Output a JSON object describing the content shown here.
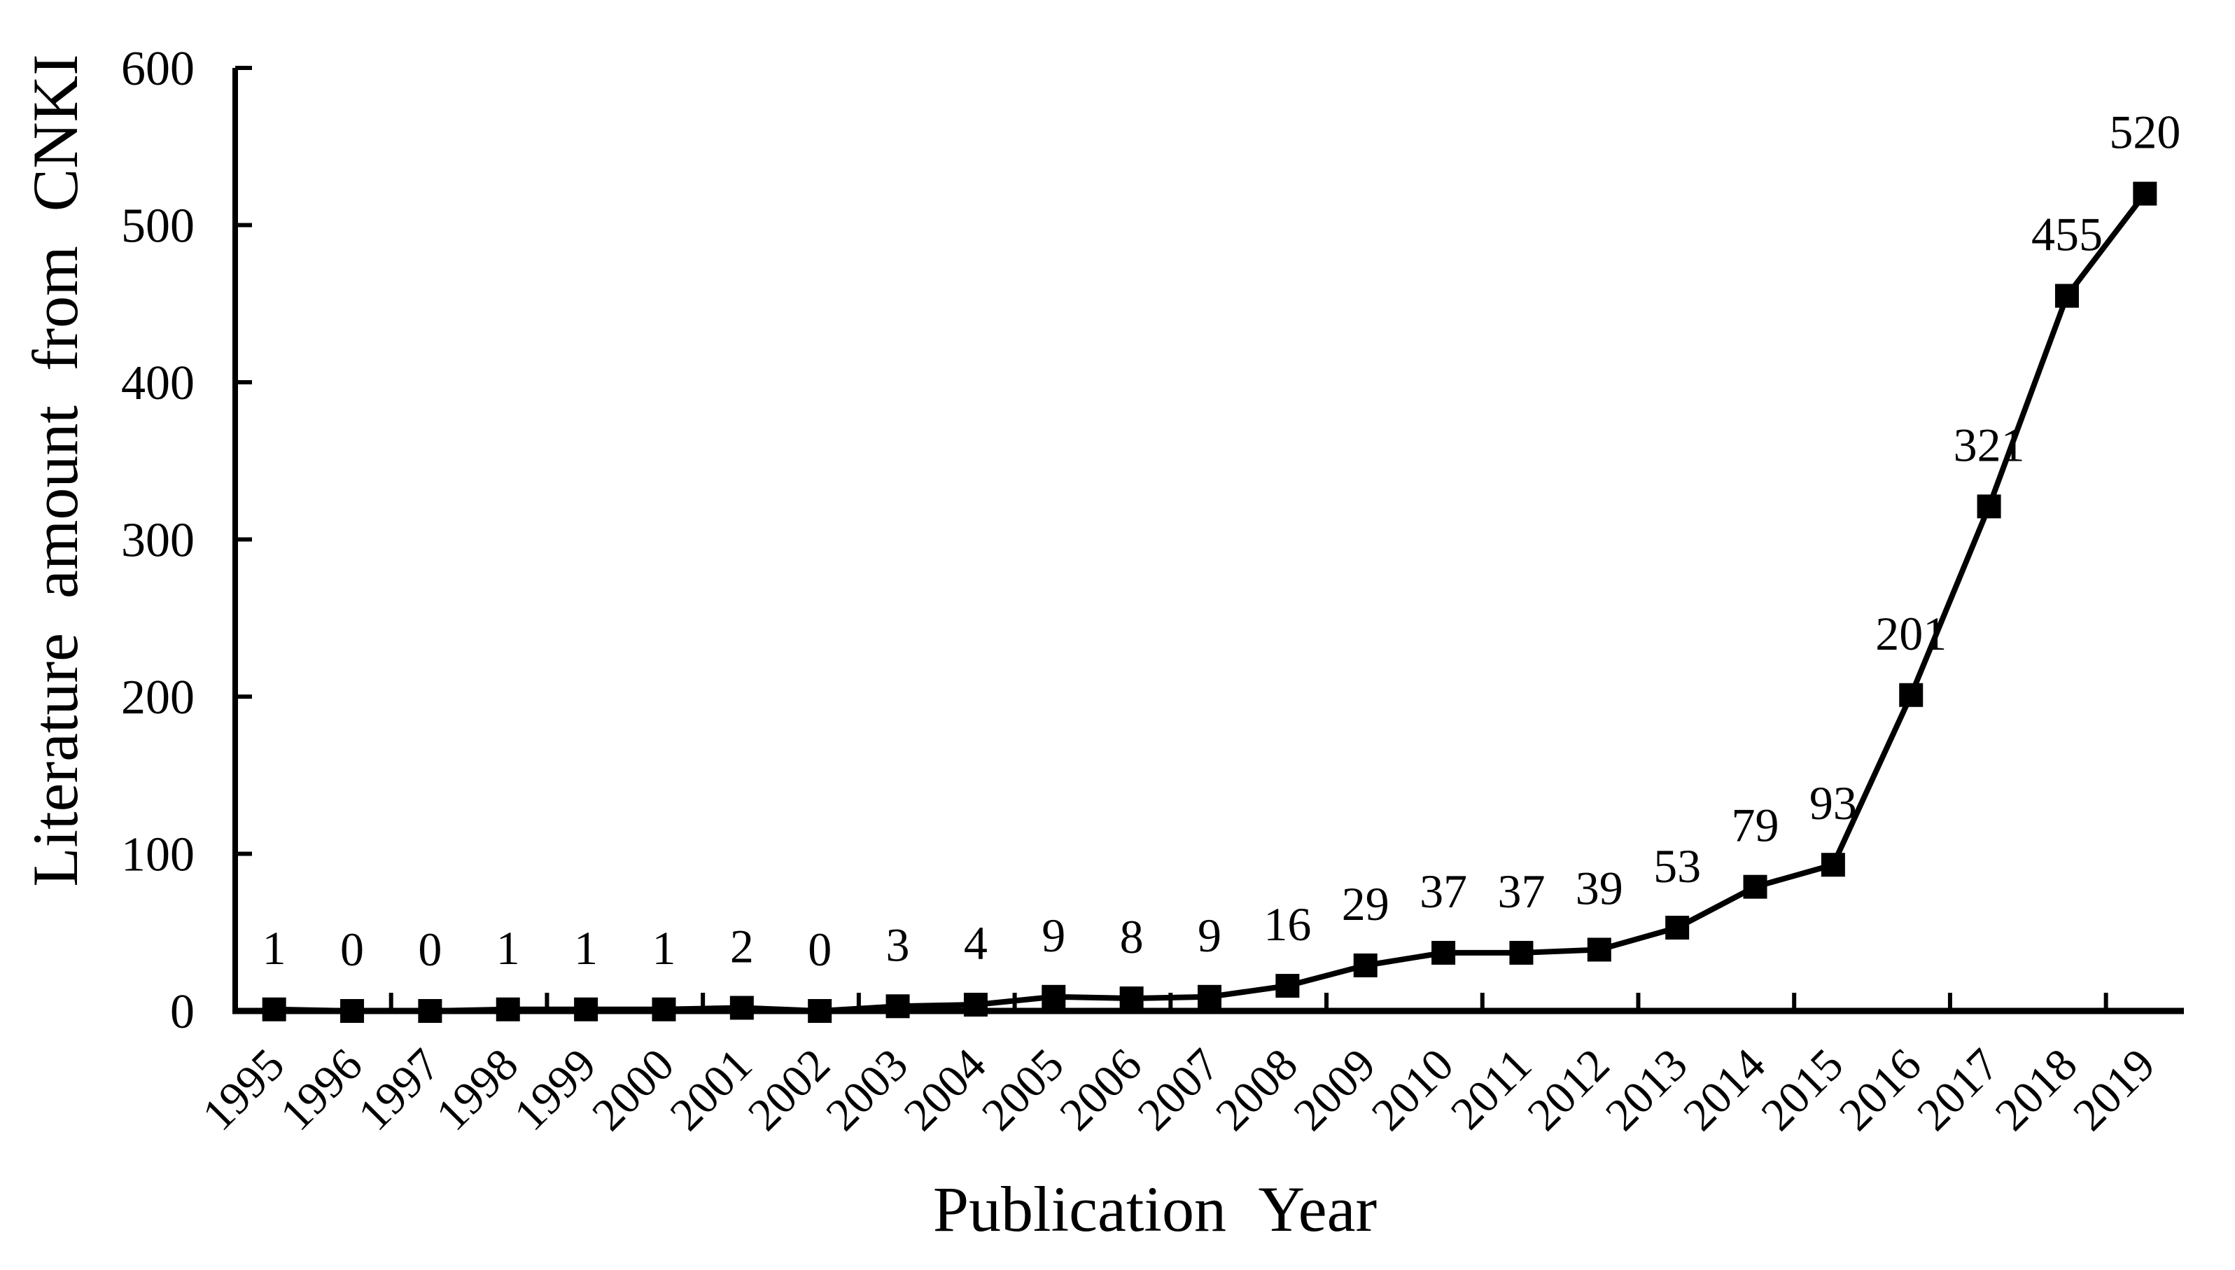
{
  "chart_data": {
    "type": "line",
    "title": "",
    "categories": [
      "1995",
      "1996",
      "1997",
      "1998",
      "1999",
      "2000",
      "2001",
      "2002",
      "2003",
      "2004",
      "2005",
      "2006",
      "2007",
      "2008",
      "2009",
      "2010",
      "2011",
      "2012",
      "2013",
      "2014",
      "2015",
      "2016",
      "2017",
      "2018",
      "2019"
    ],
    "values": [
      1,
      0,
      0,
      1,
      1,
      1,
      2,
      0,
      3,
      4,
      9,
      8,
      9,
      16,
      29,
      37,
      37,
      39,
      53,
      79,
      93,
      201,
      321,
      455,
      520
    ],
    "data_labels": [
      1,
      0,
      0,
      1,
      1,
      1,
      2,
      0,
      3,
      4,
      9,
      8,
      9,
      16,
      29,
      37,
      37,
      39,
      53,
      79,
      93,
      201,
      321,
      455,
      520
    ],
    "xlabel": "Publication Year",
    "ylabel": "Literature amount from CNKI",
    "ylim": [
      0,
      600
    ],
    "yticks": [
      0,
      100,
      200,
      300,
      400,
      500,
      600
    ],
    "x_tick_interval": 2,
    "grid": false,
    "legend": "none",
    "marker": "square",
    "colors": {
      "line": "#000000",
      "marker": "#000000",
      "axis": "#000000",
      "tick_label": "#000000",
      "data_label": "#4d4d4d",
      "background": "#ffffff"
    }
  }
}
